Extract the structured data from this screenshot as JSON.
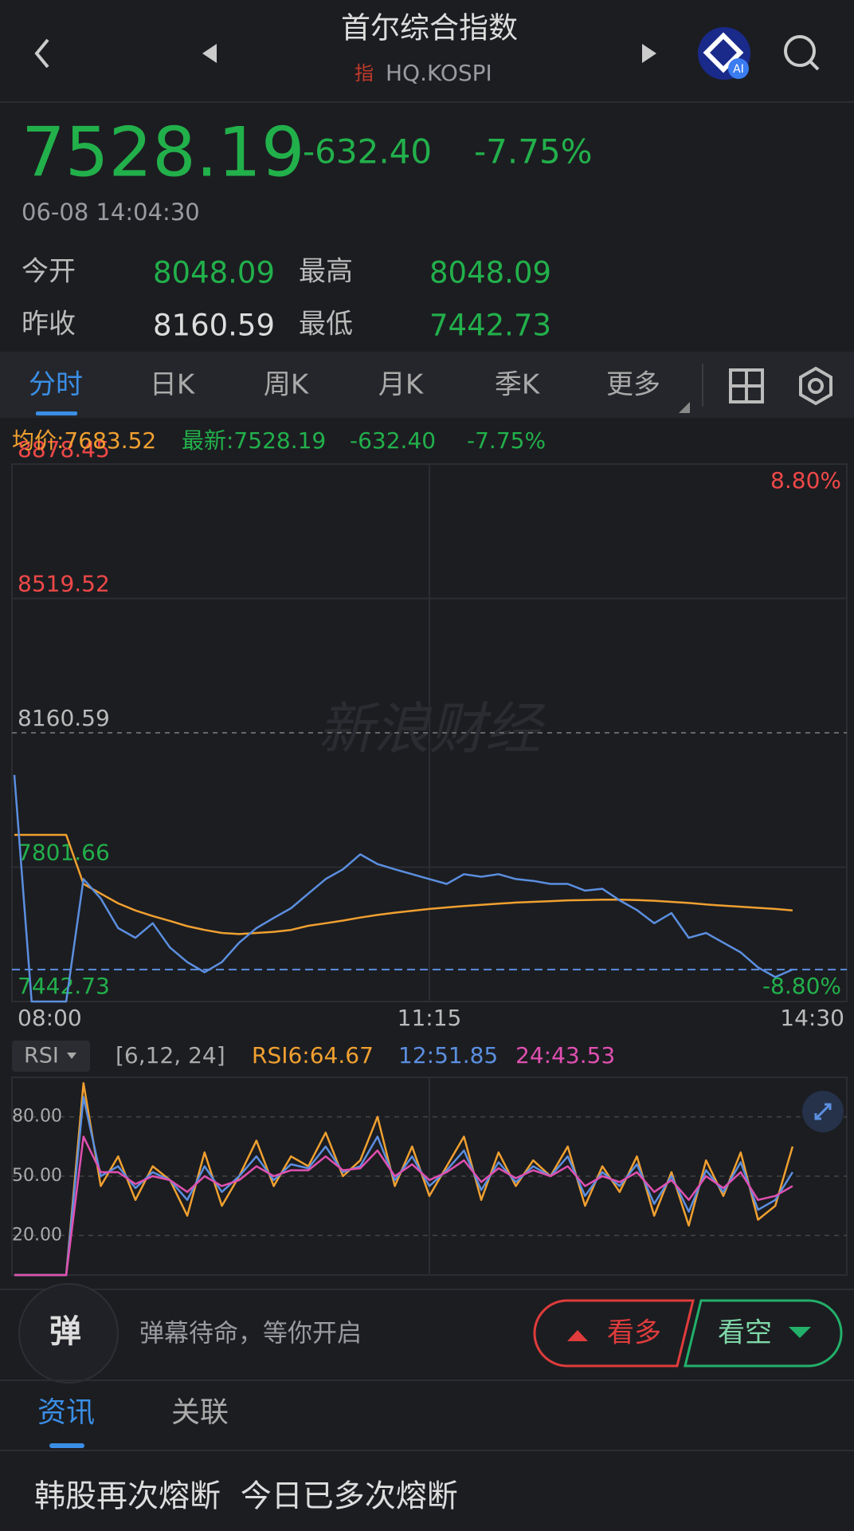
{
  "header": {
    "title": "首尔综合指数",
    "badge": "指",
    "code": "HQ.KOSPI",
    "ai": "AI"
  },
  "quote": {
    "price": "7528.19",
    "change": "-632.40",
    "percent": "-7.75%",
    "time": "06-08 14:04:30",
    "fields": [
      {
        "label": "今开",
        "value": "8048.09"
      },
      {
        "label": "最高",
        "value": "8048.09"
      },
      {
        "label": "昨收",
        "value": "8160.59"
      },
      {
        "label": "最低",
        "value": "7442.73"
      }
    ]
  },
  "tabs": [
    "分时",
    "日K",
    "周K",
    "月K",
    "季K",
    "更多"
  ],
  "watermark": "新浪财经",
  "chart_data": [
    {
      "type": "line",
      "annotations": [
        "-632.40",
        "-7.75%"
      ],
      "categories": [
        "08:00",
        null,
        null,
        null,
        null,
        null,
        null,
        null,
        null,
        null,
        null,
        null,
        null,
        null,
        null,
        null,
        null,
        null,
        null,
        null,
        null,
        null,
        null,
        null,
        "11:15",
        null,
        null,
        null,
        null,
        null,
        null,
        null,
        null,
        null,
        null,
        null,
        null,
        null,
        null,
        null,
        null,
        null,
        null,
        null,
        null,
        null,
        null,
        null,
        "14:30"
      ],
      "series": [
        {
          "name": "均价:7683.52",
          "color": "#f0a030",
          "values": [
            7888,
            7888,
            7888,
            7888,
            7757,
            7731,
            7705,
            7686,
            7671,
            7658,
            7644,
            7634,
            7626,
            7623,
            7626,
            7629,
            7634,
            7645,
            7652,
            7659,
            7667,
            7674,
            7680,
            7685,
            7690,
            7694,
            7698,
            7701,
            7704,
            7707,
            7709,
            7711,
            7713,
            7714,
            7715,
            7715,
            7714,
            7712,
            7709,
            7706,
            7702,
            7699,
            7696,
            7693,
            7690,
            7686,
            null,
            null,
            null
          ]
        },
        {
          "name": "最新:7528.19",
          "color": "#5b8fe0",
          "values": [
            8048.09,
            7442.73,
            7442.73,
            7442.73,
            7770,
            7718,
            7639,
            7613,
            7652,
            7587,
            7548,
            7521,
            7548,
            7600,
            7639,
            7666,
            7692,
            7731,
            7770,
            7796,
            7836,
            7810,
            7796,
            7783,
            7770,
            7757,
            7783,
            7776,
            7783,
            7770,
            7765,
            7757,
            7757,
            7739,
            7744,
            7713,
            7687,
            7652,
            7679,
            7613,
            7626,
            7600,
            7574,
            7534,
            7508,
            7528.19,
            null,
            null,
            null
          ]
        }
      ],
      "ylim": [
        7442.73,
        8878.45
      ],
      "yticks": [
        7442.73,
        7801.66,
        8160.59,
        8519.52,
        8878.45
      ],
      "y2lim": [
        -8.8,
        8.8
      ],
      "y2ticks": [
        {
          "value": 8.8,
          "label": "8.80%"
        },
        {
          "value": -8.8,
          "label": "-8.80%"
        }
      ],
      "grid": true
    },
    {
      "type": "line",
      "indicator": "RSI",
      "params": "[6,12, 24]",
      "series": [
        {
          "name": "RSI6:64.67",
          "color": "#f0a030",
          "values": [
            0,
            0,
            0,
            0,
            97,
            45,
            60,
            38,
            55,
            48,
            30,
            62,
            35,
            50,
            68,
            45,
            60,
            55,
            72,
            50,
            58,
            80,
            45,
            65,
            40,
            55,
            70,
            38,
            62,
            45,
            58,
            50,
            65,
            35,
            55,
            42,
            60,
            30,
            52,
            25,
            58,
            40,
            62,
            28,
            35,
            65,
            null,
            null,
            null
          ]
        },
        {
          "name": "12:51.85",
          "color": "#5b8fe0",
          "values": [
            0,
            0,
            0,
            0,
            90,
            50,
            55,
            44,
            52,
            48,
            38,
            55,
            42,
            50,
            60,
            48,
            56,
            54,
            65,
            52,
            55,
            70,
            48,
            60,
            45,
            53,
            63,
            43,
            57,
            47,
            55,
            50,
            60,
            40,
            52,
            45,
            56,
            36,
            50,
            32,
            53,
            42,
            57,
            33,
            38,
            52,
            null,
            null,
            null
          ]
        },
        {
          "name": "24:43.53",
          "color": "#e050b0",
          "values": [
            0,
            0,
            0,
            0,
            70,
            52,
            52,
            46,
            50,
            48,
            42,
            50,
            45,
            48,
            55,
            50,
            53,
            53,
            60,
            53,
            54,
            63,
            50,
            56,
            48,
            52,
            58,
            47,
            54,
            49,
            53,
            50,
            55,
            45,
            50,
            47,
            52,
            42,
            48,
            38,
            50,
            44,
            52,
            38,
            40,
            45,
            null,
            null,
            null
          ]
        }
      ],
      "ylim": [
        0,
        100
      ],
      "yticks": [
        {
          "value": 20,
          "label": "20.00"
        },
        {
          "value": 50,
          "label": "50.00"
        },
        {
          "value": 80,
          "label": "80.00"
        }
      ],
      "grid": true
    }
  ],
  "danmaku": {
    "icon": "弹",
    "placeholder": "弹幕待命，等你开启"
  },
  "buttons": [
    "看多",
    "看空"
  ],
  "news_tabs": [
    "资讯",
    "关联"
  ],
  "headline": "韩股再次熔断  今日已多次熔断"
}
